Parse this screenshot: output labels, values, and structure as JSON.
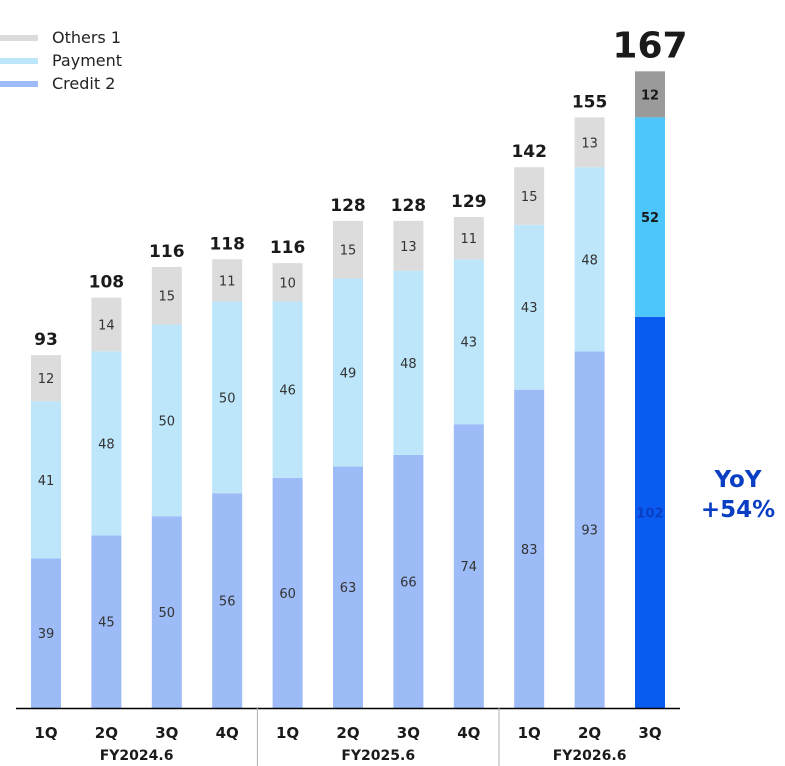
{
  "chart_data": {
    "type": "bar",
    "stacked": true,
    "categories": [
      "1Q",
      "2Q",
      "3Q",
      "4Q",
      "1Q",
      "2Q",
      "3Q",
      "4Q",
      "1Q",
      "2Q",
      "3Q"
    ],
    "groups": [
      {
        "label": "FY2024.6",
        "quarters": [
          "1Q",
          "2Q",
          "3Q",
          "4Q"
        ]
      },
      {
        "label": "FY2025.6",
        "quarters": [
          "1Q",
          "2Q",
          "3Q",
          "4Q"
        ]
      },
      {
        "label": "FY2026.6",
        "quarters": [
          "1Q",
          "2Q",
          "3Q"
        ]
      }
    ],
    "series": [
      {
        "name": "Credit 2",
        "values": [
          39,
          45,
          50,
          56,
          60,
          63,
          66,
          74,
          83,
          93,
          102
        ],
        "color": "#9dbbf7",
        "highlight_color": "#0a5bf0"
      },
      {
        "name": "Payment",
        "values": [
          41,
          48,
          50,
          50,
          46,
          49,
          48,
          43,
          43,
          48,
          52
        ],
        "color": "#bde6fb",
        "highlight_color": "#4cc6fb"
      },
      {
        "name": "Others 1",
        "values": [
          12,
          14,
          15,
          11,
          10,
          15,
          13,
          11,
          15,
          13,
          12
        ],
        "color": "#dcdcdc",
        "highlight_color": "#9a9a9a"
      }
    ],
    "totals": [
      93,
      108,
      116,
      118,
      116,
      128,
      128,
      129,
      142,
      155,
      167
    ],
    "highlight_index": 10,
    "ylim": [
      0,
      170
    ],
    "legend_position": "top-left",
    "legend": [
      "Others 1",
      "Payment",
      "Credit 2"
    ],
    "title": "",
    "xlabel": "",
    "ylabel": "",
    "grid": false
  },
  "annotation": {
    "yoy_label": "YoY",
    "yoy_value": "+54%",
    "color": "#0a3fc4"
  },
  "colors": {
    "total_label": "#1a1a1a",
    "segment_label": "#333333",
    "axis_line": "#000000",
    "divider": "#b0b0b0"
  }
}
